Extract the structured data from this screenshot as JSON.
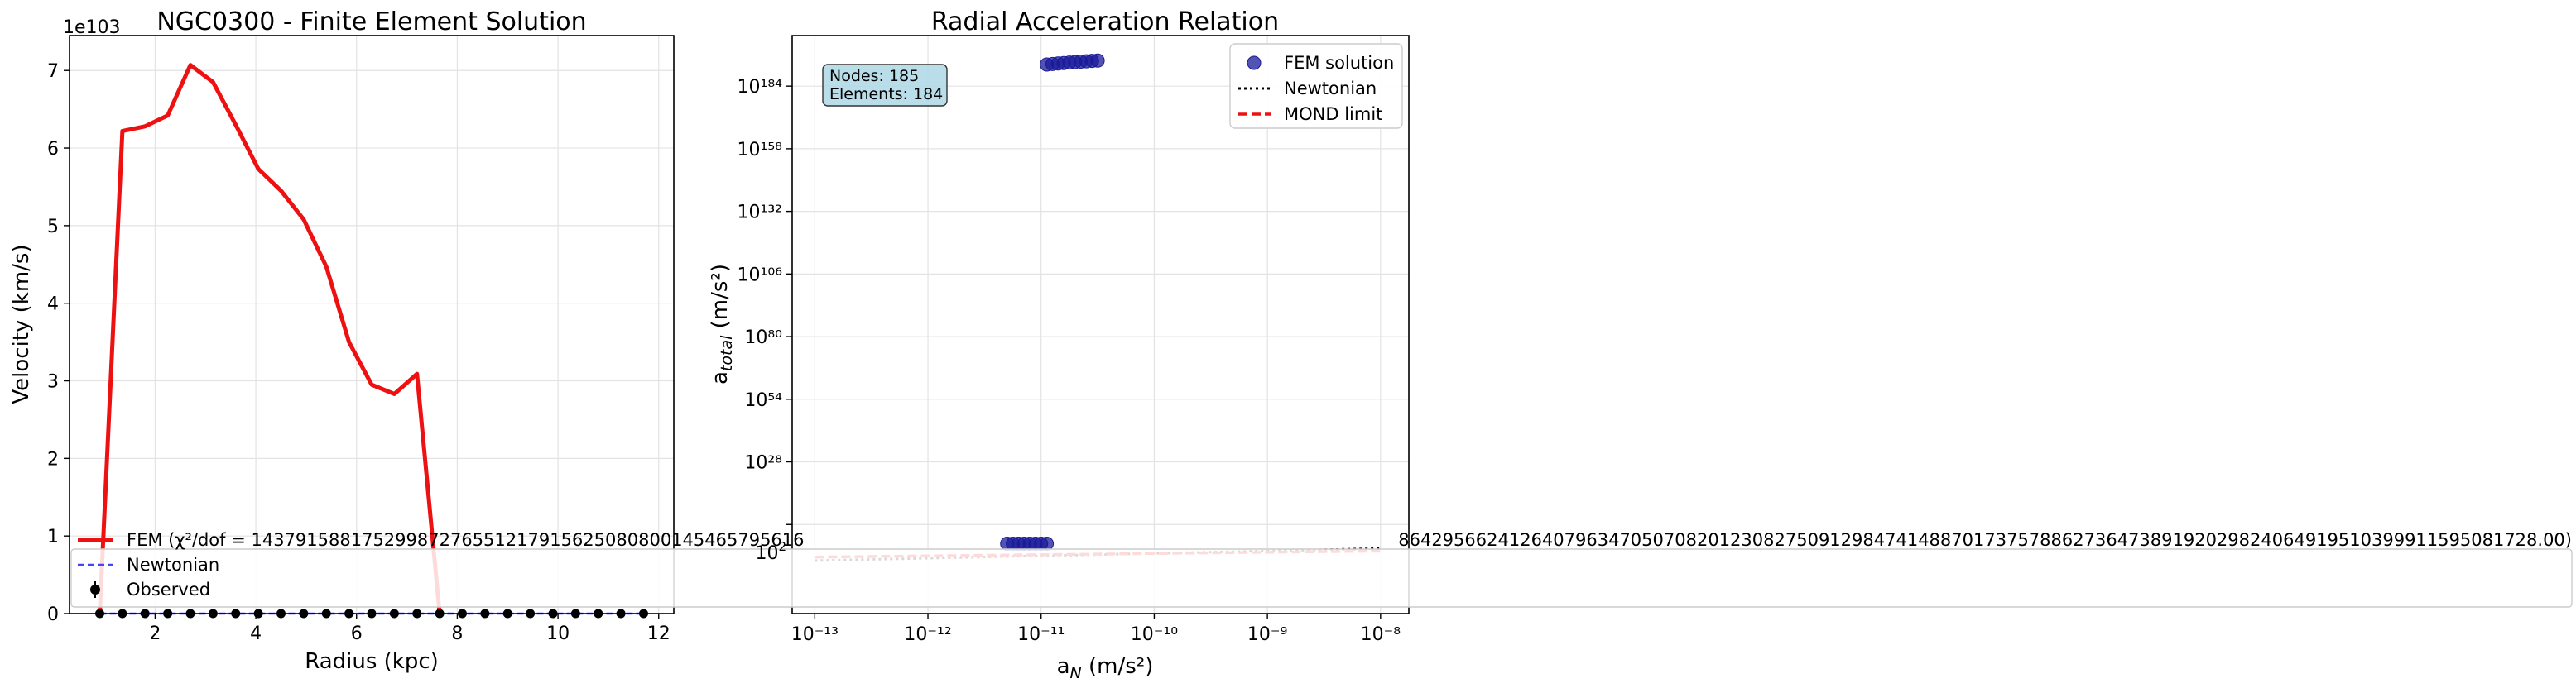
{
  "chart_data": [
    {
      "type": "line",
      "title": "NGC0300 - Finite Element Solution",
      "xlabel": "Radius (kpc)",
      "ylabel": "Velocity (km/s)",
      "y_offset_label": "1e103",
      "xlim": [
        0.3,
        12.3
      ],
      "ylim": [
        0,
        7.45
      ],
      "y_scale_factor": "1e103",
      "xticks": [
        2,
        4,
        6,
        8,
        10,
        12
      ],
      "xtick_labels": [
        "2",
        "4",
        "6",
        "8",
        "10",
        "12"
      ],
      "yticks": [
        0,
        1,
        2,
        3,
        4,
        5,
        6,
        7
      ],
      "ytick_labels": [
        "0",
        "1",
        "2",
        "3",
        "4",
        "5",
        "6",
        "7"
      ],
      "grid": true,
      "legend_position": "lower-left",
      "series": [
        {
          "name": "FEM (χ²/dof = 1437915881752998727655121791562508080014546579561620427848642956624126407963470507082012308275091298474148870173757886273647389192029824064919510399911595081728.00)",
          "legend_visible_prefix": "FEM (χ²/dof = 14379158817529987276551217915625080800145465795616",
          "legend_visible_suffix": "8642956624126407963470507082012308275091298474148870173757886273647389192029824064919510399911595081728.00)",
          "color": "#ee1111",
          "x": [
            0.9,
            1.35,
            1.8,
            2.25,
            2.7,
            3.15,
            3.6,
            4.05,
            4.5,
            4.95,
            5.4,
            5.85,
            6.3,
            6.75,
            7.2,
            7.65
          ],
          "y": [
            0.0,
            6.22,
            6.28,
            6.42,
            7.07,
            6.85,
            6.3,
            5.73,
            5.45,
            5.08,
            4.47,
            3.5,
            2.95,
            2.83,
            3.09,
            0.0
          ]
        },
        {
          "name": "Newtonian",
          "color": "#4444ff",
          "x": [
            0.9,
            1.35,
            1.8,
            2.25,
            2.7,
            3.15,
            3.6,
            4.05,
            4.5,
            4.95,
            5.4,
            5.85,
            6.3,
            6.75,
            7.2,
            7.65,
            8.1,
            8.55,
            9.0,
            9.45,
            9.9,
            10.35,
            10.8,
            11.25,
            11.7
          ],
          "y": [
            0,
            0,
            0,
            0,
            0,
            0,
            0,
            0,
            0,
            0,
            0,
            0,
            0,
            0,
            0,
            0,
            0,
            0,
            0,
            0,
            0,
            0,
            0,
            0,
            0
          ]
        },
        {
          "name": "Observed",
          "color": "#000000",
          "x": [
            0.9,
            1.35,
            1.8,
            2.25,
            2.7,
            3.15,
            3.6,
            4.05,
            4.5,
            4.95,
            5.4,
            5.85,
            6.3,
            6.75,
            7.2,
            7.65,
            8.1,
            8.55,
            9.0,
            9.45,
            9.9,
            10.35,
            10.8,
            11.25,
            11.7
          ],
          "y": [
            0,
            0,
            0,
            0,
            0,
            0,
            0,
            0,
            0,
            0,
            0,
            0,
            0,
            0,
            0,
            0,
            0,
            0,
            0,
            0,
            0,
            0,
            0,
            0,
            0
          ]
        }
      ]
    },
    {
      "type": "scatter",
      "title": "Radial Acceleration Relation",
      "xlabel": "a_N (m/s²)",
      "ylabel": "a_total (m/s²)",
      "x_scale": "log",
      "y_scale": "log",
      "xlim_log10": [
        -13.2,
        -7.75
      ],
      "ylim_log10": [
        -35,
        205
      ],
      "xtick_labels": [
        "10⁻¹³",
        "10⁻¹²",
        "10⁻¹¹",
        "10⁻¹⁰",
        "10⁻⁹",
        "10⁻⁸"
      ],
      "xtick_exponents": [
        -13,
        -12,
        -11,
        -10,
        -9,
        -8
      ],
      "ytick_exponents": [
        184,
        158,
        132,
        106,
        80,
        54,
        28,
        2
      ],
      "ytick_labels": [
        "10¹⁸⁴",
        "10¹⁵⁸",
        "10¹³²",
        "10¹⁰⁶",
        "10⁸⁰",
        "10⁵⁴",
        "10²⁸",
        "10²"
      ],
      "grid": true,
      "legend_position": "top-right",
      "info_box": {
        "nodes": "Nodes: 185",
        "elements": "Elements: 184"
      },
      "series": [
        {
          "name": "FEM solution",
          "color": "#1a1a99",
          "x_log10": [
            -10.95,
            -10.9,
            -10.85,
            -10.8,
            -10.75,
            -10.7,
            -10.65,
            -10.6,
            -10.55,
            -10.5,
            -11.3,
            -11.25,
            -11.2,
            -11.15,
            -11.1,
            -11.05,
            -11.0,
            -10.95
          ],
          "y_log10": [
            193,
            193.2,
            193.4,
            193.6,
            193.8,
            194,
            194.2,
            194.3,
            194.5,
            194.6,
            -6,
            -6,
            -6,
            -6,
            -6,
            -6,
            -6,
            -6
          ]
        },
        {
          "name": "Newtonian",
          "color": "#000000",
          "x_log10": [
            -13,
            -8
          ],
          "y_log10": [
            -13,
            -8
          ]
        },
        {
          "name": "MOND limit",
          "color": "#ee1111",
          "x_log10": [
            -13,
            -8
          ],
          "y_log10": [
            -11.54,
            -9.04
          ]
        }
      ]
    }
  ]
}
